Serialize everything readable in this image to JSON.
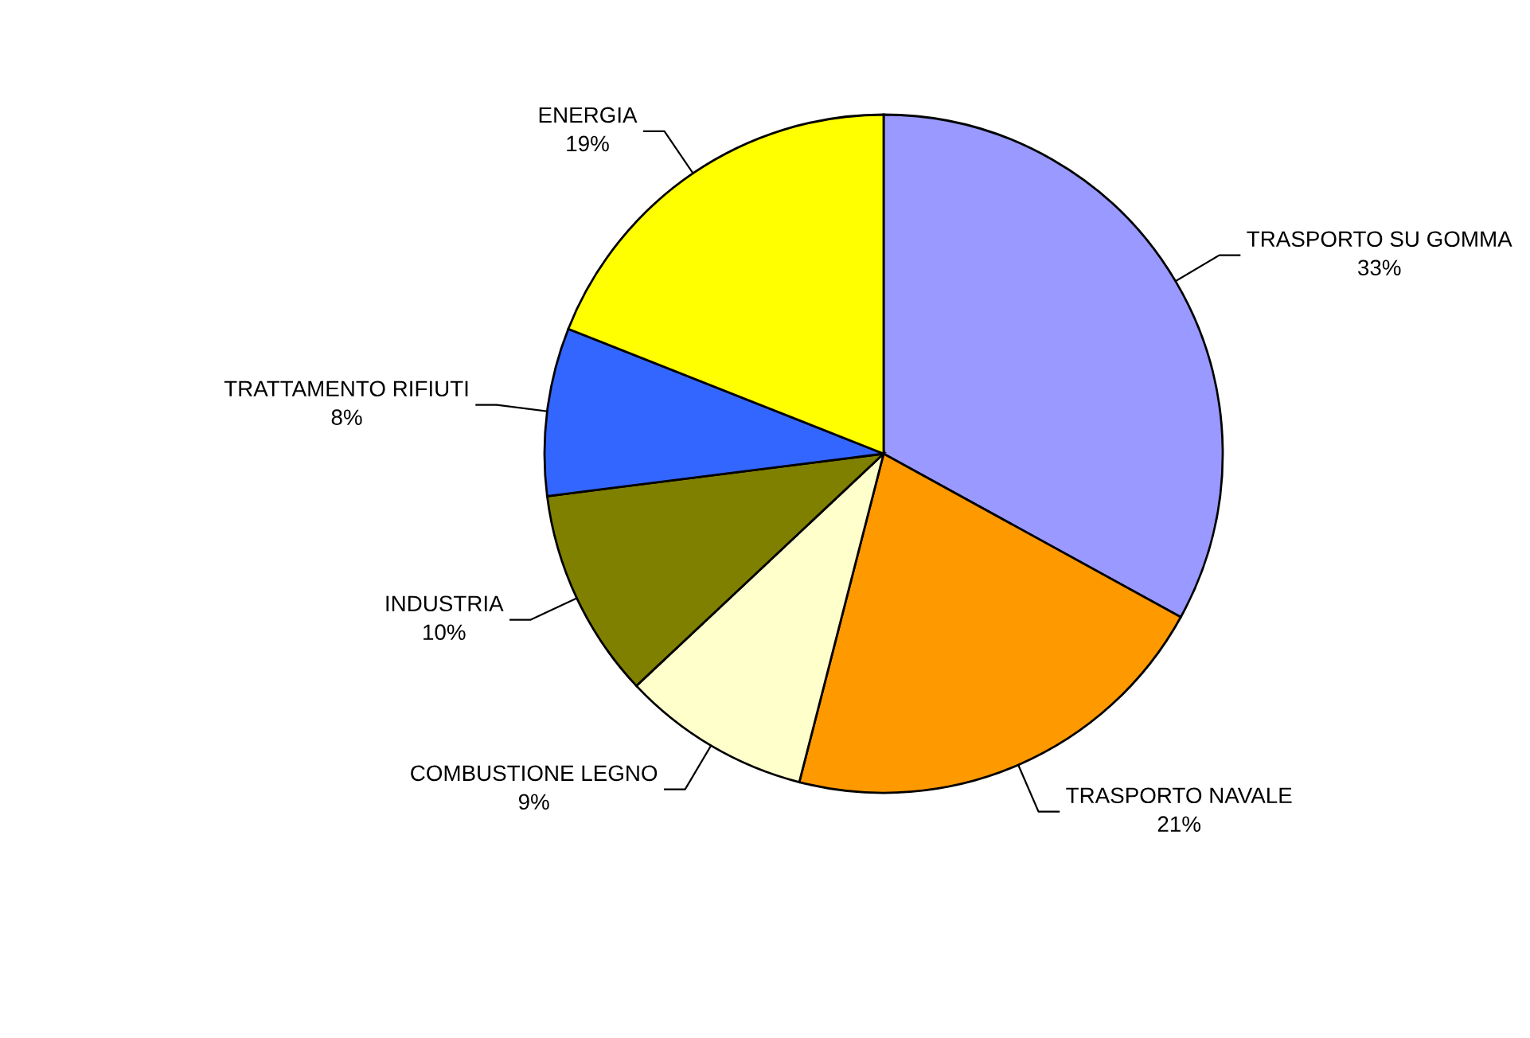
{
  "chart_data": {
    "type": "pie",
    "categories": [
      "TRASPORTO SU GOMMA",
      "TRASPORTO NAVALE",
      "COMBUSTIONE LEGNO",
      "INDUSTRIA",
      "TRATTAMENTO RIFIUTI",
      "ENERGIA"
    ],
    "values": [
      33,
      21,
      9,
      10,
      8,
      19
    ],
    "value_labels": [
      "33%",
      "21%",
      "9%",
      "10%",
      "8%",
      "19%"
    ],
    "colors": [
      "#9999ff",
      "#ff9900",
      "#ffffcc",
      "#808000",
      "#3366ff",
      "#ffff00"
    ],
    "legend": false
  }
}
